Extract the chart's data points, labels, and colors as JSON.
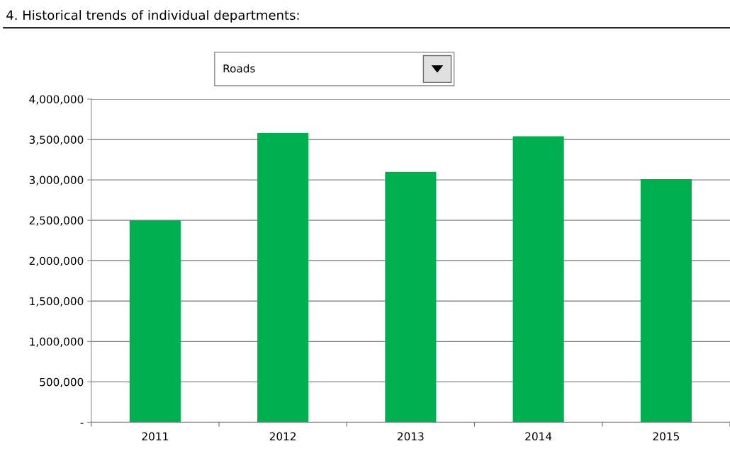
{
  "chart_data": {
    "type": "bar",
    "title": "4. Historical trends of individual departments:",
    "subtitle": "Roads",
    "categories": [
      "2011",
      "2012",
      "2013",
      "2014",
      "2015"
    ],
    "values": [
      2500000,
      3580000,
      3100000,
      3540000,
      3010000
    ],
    "color": "#00b050",
    "ylim": [
      0,
      4000000
    ],
    "yticks": [
      {
        "value": 0,
        "label": "-"
      },
      {
        "value": 500000,
        "label": "500,000"
      },
      {
        "value": 1000000,
        "label": "1,000,000"
      },
      {
        "value": 1500000,
        "label": "1,500,000"
      },
      {
        "value": 2000000,
        "label": "2,000,000"
      },
      {
        "value": 2500000,
        "label": "2,500,000"
      },
      {
        "value": 3000000,
        "label": "3,000,000"
      },
      {
        "value": 3500000,
        "label": "3,500,000"
      },
      {
        "value": 4000000,
        "label": "4,000,000"
      }
    ],
    "grid": "y",
    "legend": false
  }
}
